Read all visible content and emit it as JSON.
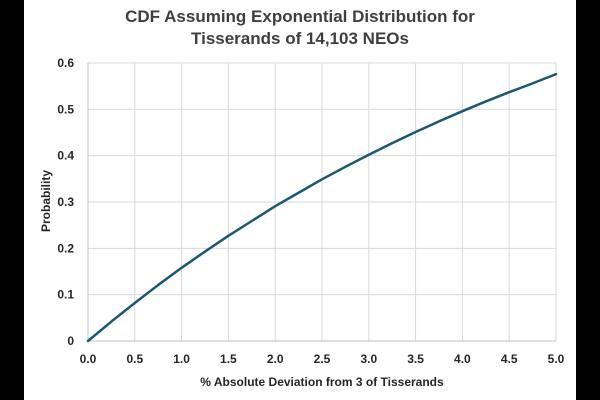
{
  "chart_data": {
    "type": "line",
    "title": "CDF Assuming Exponential Distribution for Tisserands of 14,103 NEOs",
    "title_lines": [
      "CDF Assuming Exponential Distribution for",
      "Tisserands of 14,103 NEOs"
    ],
    "xlabel": "% Absolute Deviation from 3 of Tisserands",
    "ylabel": "Probability",
    "xlim": [
      0,
      5
    ],
    "ylim": [
      0,
      0.6
    ],
    "x_ticks": [
      "0.0",
      "0.5",
      "1.0",
      "1.5",
      "2.0",
      "2.5",
      "3.0",
      "3.5",
      "4.0",
      "4.5",
      "5.0"
    ],
    "y_ticks": [
      "0",
      "0.1",
      "0.2",
      "0.3",
      "0.4",
      "0.5",
      "0.6"
    ],
    "grid": true,
    "legend": "none",
    "series": [
      {
        "color": "#1b5873",
        "x": [
          0,
          0.25,
          0.5,
          0.75,
          1.0,
          1.25,
          1.5,
          1.75,
          2.0,
          2.25,
          2.5,
          2.75,
          3.0,
          3.25,
          3.5,
          3.75,
          4.0,
          4.25,
          4.5,
          4.75,
          5.0
        ],
        "y": [
          0,
          0.042,
          0.082,
          0.121,
          0.158,
          0.193,
          0.227,
          0.259,
          0.291,
          0.32,
          0.349,
          0.376,
          0.402,
          0.427,
          0.451,
          0.474,
          0.496,
          0.517,
          0.537,
          0.556,
          0.576
        ]
      }
    ]
  }
}
